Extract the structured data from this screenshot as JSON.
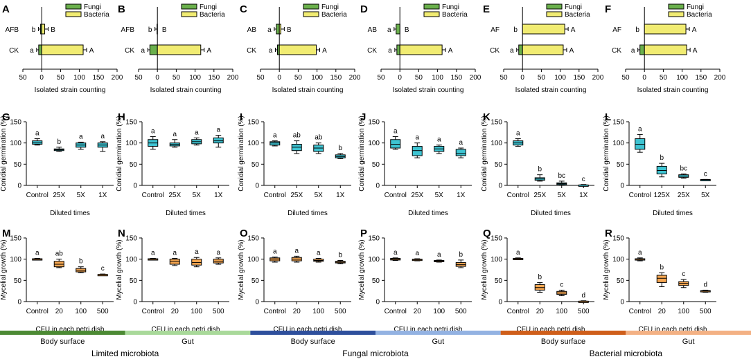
{
  "colors": {
    "fungi": "#6ab04c",
    "bacteria": "#f1ec72",
    "box_cyan": "#3ec4d2",
    "box_orange": "#f5a651",
    "grp_limited_body": "#4c8a34",
    "grp_limited_gut": "#a9d99a",
    "grp_fungal_body": "#2e4f9c",
    "grp_fungal_gut": "#93b2e2",
    "grp_bacterial_body": "#cf5e1a",
    "grp_bacterial_gut": "#f3b184"
  },
  "chart_data": [
    {
      "panel": "A",
      "type": "bar",
      "orientation": "horizontal",
      "categories": [
        "AFB",
        "CK"
      ],
      "series": [
        {
          "name": "Fungi",
          "values": [
            -3,
            -8
          ],
          "letters": [
            "b",
            "a"
          ]
        },
        {
          "name": "Bacteria",
          "values": [
            8,
            110
          ],
          "letters": [
            "B",
            "A"
          ]
        }
      ],
      "xlabel": "Isolated strain counting",
      "xticks": [
        "50",
        "0",
        "50",
        "100",
        "150",
        "200"
      ],
      "xlim": [
        -50,
        200
      ],
      "legend": [
        "Fungi",
        "Bacteria"
      ]
    },
    {
      "panel": "B",
      "type": "bar",
      "orientation": "horizontal",
      "categories": [
        "AFB",
        "CK"
      ],
      "series": [
        {
          "name": "Fungi",
          "values": [
            -1,
            -20
          ],
          "letters": [
            "b",
            "a"
          ]
        },
        {
          "name": "Bacteria",
          "values": [
            0,
            115
          ],
          "letters": [
            "B",
            "A"
          ]
        }
      ],
      "xlabel": "Isolated strain counting",
      "xticks": [
        "50",
        "0",
        "50",
        "100",
        "150",
        "200"
      ],
      "xlim": [
        -50,
        200
      ],
      "legend": [
        "Fungi",
        "Bacteria"
      ]
    },
    {
      "panel": "C",
      "type": "bar",
      "orientation": "horizontal",
      "categories": [
        "AB",
        "CK"
      ],
      "series": [
        {
          "name": "Fungi",
          "values": [
            -8,
            -5
          ],
          "letters": [
            "a",
            "a"
          ]
        },
        {
          "name": "Bacteria",
          "values": [
            4,
            98
          ],
          "letters": [
            "B",
            "A"
          ]
        }
      ],
      "xlabel": "Isolated strain counting",
      "xticks": [
        "50",
        "0",
        "50",
        "100",
        "150",
        "200"
      ],
      "xlim": [
        -50,
        200
      ],
      "legend": [
        "Fungi",
        "Bacteria"
      ]
    },
    {
      "panel": "D",
      "type": "bar",
      "orientation": "horizontal",
      "categories": [
        "AB",
        "CK"
      ],
      "series": [
        {
          "name": "Fungi",
          "values": [
            -10,
            -8
          ],
          "letters": [
            "a",
            "a"
          ]
        },
        {
          "name": "Bacteria",
          "values": [
            0,
            112
          ],
          "letters": [
            "B",
            "A"
          ]
        }
      ],
      "xlabel": "Isolated strain counting",
      "xticks": [
        "50",
        "0",
        "50",
        "100",
        "150",
        "200"
      ],
      "xlim": [
        -50,
        200
      ],
      "legend": [
        "Fungi",
        "Bacteria"
      ]
    },
    {
      "panel": "E",
      "type": "bar",
      "orientation": "horizontal",
      "categories": [
        "AF",
        "CK"
      ],
      "series": [
        {
          "name": "Fungi",
          "values": [
            0,
            -10
          ],
          "letters": [
            "b",
            "a"
          ]
        },
        {
          "name": "Bacteria",
          "values": [
            112,
            108
          ],
          "letters": [
            "A",
            "A"
          ]
        }
      ],
      "xlabel": "Isolated strain counting",
      "xticks": [
        "50",
        "0",
        "50",
        "100",
        "150",
        "200"
      ],
      "xlim": [
        -50,
        200
      ],
      "legend": [
        "Fungi",
        "Bacteria"
      ]
    },
    {
      "panel": "F",
      "type": "bar",
      "orientation": "horizontal",
      "categories": [
        "AF",
        "CK"
      ],
      "series": [
        {
          "name": "Fungi",
          "values": [
            0,
            -12
          ],
          "letters": [
            "b",
            "a"
          ]
        },
        {
          "name": "Bacteria",
          "values": [
            110,
            112
          ],
          "letters": [
            "A",
            "A"
          ]
        }
      ],
      "xlabel": "Isolated strain counting",
      "xticks": [
        "50",
        "0",
        "50",
        "100",
        "150",
        "200"
      ],
      "xlim": [
        -50,
        200
      ],
      "legend": [
        "Fungi",
        "Bacteria"
      ]
    },
    {
      "panel": "G",
      "type": "box",
      "color": "cyan",
      "ylabel": "Conidial germination (%)",
      "xlabel": "Diluted times",
      "categories": [
        "Control",
        "25X",
        "5X",
        "1X"
      ],
      "ylim": [
        0,
        150
      ],
      "yticks": [
        "0",
        "50",
        "100",
        "150"
      ],
      "boxes": [
        [
          95,
          97,
          100,
          105,
          110
        ],
        [
          80,
          82,
          84,
          86,
          90
        ],
        [
          85,
          90,
          95,
          100,
          102
        ],
        [
          80,
          90,
          95,
          100,
          103
        ]
      ],
      "letters": [
        "a",
        "b",
        "a",
        "a"
      ]
    },
    {
      "panel": "H",
      "type": "box",
      "color": "cyan",
      "ylabel": "Conidial germination (%)",
      "xlabel": "Diluted times",
      "categories": [
        "Control",
        "25X",
        "5X",
        "1X"
      ],
      "ylim": [
        0,
        150
      ],
      "yticks": [
        "0",
        "50",
        "100",
        "150"
      ],
      "boxes": [
        [
          85,
          92,
          100,
          108,
          115
        ],
        [
          90,
          93,
          97,
          100,
          108
        ],
        [
          95,
          98,
          103,
          108,
          112
        ],
        [
          90,
          100,
          105,
          112,
          118
        ]
      ],
      "letters": [
        "a",
        "a",
        "a",
        "a"
      ]
    },
    {
      "panel": "I",
      "type": "box",
      "color": "cyan",
      "ylabel": "Conidial germination (%)",
      "xlabel": "Diluted times",
      "categories": [
        "Control",
        "25X",
        "5X",
        "1X"
      ],
      "ylim": [
        0,
        150
      ],
      "yticks": [
        "0",
        "50",
        "100",
        "150"
      ],
      "boxes": [
        [
          93,
          95,
          100,
          103,
          105
        ],
        [
          75,
          82,
          90,
          97,
          105
        ],
        [
          75,
          80,
          88,
          95,
          100
        ],
        [
          63,
          65,
          68,
          72,
          75
        ]
      ],
      "letters": [
        "a",
        "ab",
        "ab",
        "b"
      ]
    },
    {
      "panel": "J",
      "type": "box",
      "color": "cyan",
      "ylabel": "Conidial germination (%)",
      "xlabel": "Diluted times",
      "categories": [
        "Control",
        "25X",
        "5X",
        "1X"
      ],
      "ylim": [
        0,
        150
      ],
      "yticks": [
        "0",
        "50",
        "100",
        "150"
      ],
      "boxes": [
        [
          85,
          88,
          97,
          108,
          115
        ],
        [
          65,
          70,
          82,
          92,
          100
        ],
        [
          75,
          80,
          86,
          92,
          95
        ],
        [
          65,
          70,
          75,
          85,
          88
        ]
      ],
      "letters": [
        "a",
        "a",
        "a",
        "a"
      ]
    },
    {
      "panel": "K",
      "type": "box",
      "color": "cyan",
      "ylabel": "Conidial germination (%)",
      "xlabel": "Diluted times",
      "categories": [
        "Control",
        "25X",
        "5X",
        "1X"
      ],
      "ylim": [
        0,
        150
      ],
      "yticks": [
        "0",
        "50",
        "100",
        "150"
      ],
      "boxes": [
        [
          92,
          95,
          100,
          105,
          110
        ],
        [
          10,
          12,
          15,
          18,
          25
        ],
        [
          1,
          2,
          4,
          6,
          10
        ],
        [
          0,
          0,
          1,
          1,
          2
        ]
      ],
      "letters": [
        "a",
        "b",
        "bc",
        "c"
      ]
    },
    {
      "panel": "L",
      "type": "box",
      "color": "cyan",
      "ylabel": "Conidial germination (%)",
      "xlabel": "Diluted times",
      "categories": [
        "Control",
        "125X",
        "25X",
        "5X"
      ],
      "ylim": [
        0,
        150
      ],
      "yticks": [
        "0",
        "50",
        "100",
        "150"
      ],
      "boxes": [
        [
          78,
          85,
          97,
          110,
          120
        ],
        [
          20,
          27,
          35,
          45,
          52
        ],
        [
          17,
          19,
          22,
          25,
          27
        ],
        [
          12,
          13,
          13,
          14,
          14
        ]
      ],
      "letters": [
        "a",
        "b",
        "bc",
        "c"
      ]
    },
    {
      "panel": "M",
      "type": "box",
      "color": "orange",
      "ylabel": "Mycelial growth (%)",
      "xlabel": "CFU in each petri dish",
      "categories": [
        "Control",
        "20",
        "100",
        "500"
      ],
      "ylim": [
        0,
        150
      ],
      "yticks": [
        "0",
        "50",
        "100",
        "150"
      ],
      "boxes": [
        [
          98,
          99,
          100,
          101,
          102
        ],
        [
          80,
          82,
          88,
          95,
          100
        ],
        [
          68,
          70,
          74,
          78,
          82
        ],
        [
          62,
          63,
          64,
          64,
          65
        ]
      ],
      "letters": [
        "a",
        "ab",
        "b",
        "c"
      ]
    },
    {
      "panel": "N",
      "type": "box",
      "color": "orange",
      "ylabel": "Mycelial growth (%)",
      "xlabel": "CFU in each petri dish",
      "categories": [
        "Control",
        "20",
        "100",
        "500"
      ],
      "ylim": [
        0,
        150
      ],
      "yticks": [
        "0",
        "50",
        "100",
        "150"
      ],
      "boxes": [
        [
          98,
          99,
          100,
          101,
          102
        ],
        [
          85,
          88,
          95,
          100,
          102
        ],
        [
          82,
          86,
          92,
          100,
          104
        ],
        [
          88,
          91,
          95,
          100,
          103
        ]
      ],
      "letters": [
        "a",
        "a",
        "a",
        "a"
      ]
    },
    {
      "panel": "O",
      "type": "box",
      "color": "orange",
      "ylabel": "Mycelial growth (%)",
      "xlabel": "CFU in each petri dish",
      "categories": [
        "Control",
        "20",
        "100",
        "500"
      ],
      "ylim": [
        0,
        150
      ],
      "yticks": [
        "0",
        "50",
        "100",
        "150"
      ],
      "boxes": [
        [
          93,
          96,
          100,
          103,
          105
        ],
        [
          93,
          96,
          100,
          104,
          107
        ],
        [
          93,
          95,
          97,
          100,
          102
        ],
        [
          89,
          91,
          93,
          95,
          97
        ]
      ],
      "letters": [
        "a",
        "a",
        "a",
        "b"
      ]
    },
    {
      "panel": "P",
      "type": "box",
      "color": "orange",
      "ylabel": "Mycelial growth (%)",
      "xlabel": "CFU in each petri dish",
      "categories": [
        "Control",
        "20",
        "100",
        "500"
      ],
      "ylim": [
        0,
        150
      ],
      "yticks": [
        "0",
        "50",
        "100",
        "150"
      ],
      "boxes": [
        [
          97,
          98,
          100,
          102,
          103
        ],
        [
          96,
          97,
          99,
          100,
          101
        ],
        [
          93,
          94,
          95,
          97,
          98
        ],
        [
          80,
          83,
          87,
          92,
          98
        ]
      ],
      "letters": [
        "a",
        "a",
        "a",
        "b"
      ]
    },
    {
      "panel": "Q",
      "type": "box",
      "color": "orange",
      "ylabel": "Mycelial growth (%)",
      "xlabel": "CFU in each petri dish",
      "categories": [
        "Control",
        "20",
        "100",
        "500"
      ],
      "ylim": [
        0,
        150
      ],
      "yticks": [
        "0",
        "50",
        "100",
        "150"
      ],
      "boxes": [
        [
          99,
          100,
          101,
          102,
          103
        ],
        [
          22,
          27,
          33,
          40,
          45
        ],
        [
          14,
          17,
          20,
          24,
          27
        ],
        [
          0,
          0,
          1,
          1,
          2
        ]
      ],
      "letters": [
        "a",
        "b",
        "c",
        "d"
      ]
    },
    {
      "panel": "R",
      "type": "box",
      "color": "orange",
      "ylabel": "Mycelial growth (%)",
      "xlabel": "CFU in each petri dish",
      "categories": [
        "Control",
        "20",
        "100",
        "500"
      ],
      "ylim": [
        0,
        150
      ],
      "yticks": [
        "0",
        "50",
        "100",
        "150"
      ],
      "boxes": [
        [
          96,
          98,
          100,
          101,
          103
        ],
        [
          35,
          45,
          55,
          62,
          68
        ],
        [
          33,
          38,
          43,
          47,
          52
        ],
        [
          22,
          23,
          25,
          26,
          27
        ]
      ],
      "letters": [
        "a",
        "b",
        "c",
        "d"
      ]
    }
  ],
  "groups": {
    "segments": [
      {
        "label": "Body surface",
        "color_key": "grp_limited_body"
      },
      {
        "label": "Gut",
        "color_key": "grp_limited_gut"
      },
      {
        "label": "Body surface",
        "color_key": "grp_fungal_body"
      },
      {
        "label": "Gut",
        "color_key": "grp_fungal_gut"
      },
      {
        "label": "Body surface",
        "color_key": "grp_bacterial_body"
      },
      {
        "label": "Gut",
        "color_key": "grp_bacterial_gut"
      }
    ],
    "titles": [
      "Limited microbiota",
      "Fungal microbiota",
      "Bacterial microbiota"
    ]
  }
}
